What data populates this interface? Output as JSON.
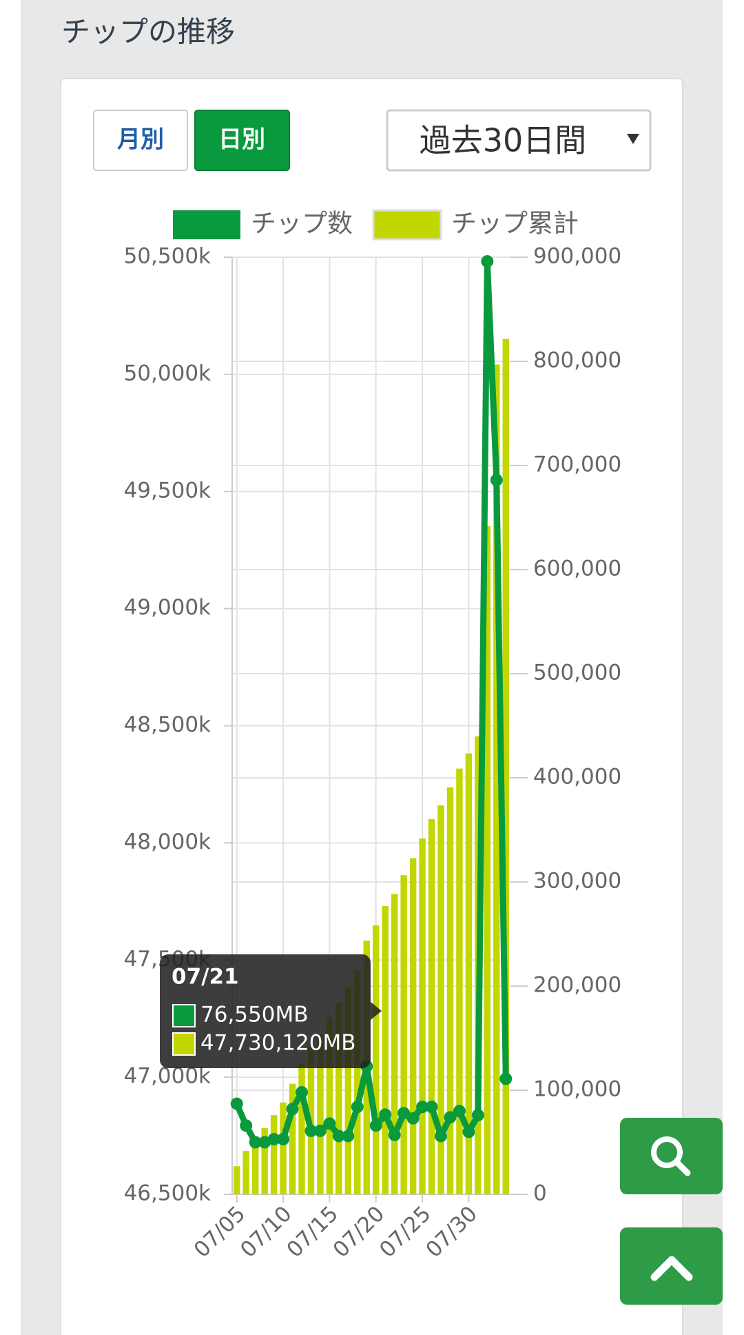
{
  "header": {
    "title": "チップの推移"
  },
  "controls": {
    "monthly": "月別",
    "daily": "日別",
    "period": "過去30日間"
  },
  "chart_data": {
    "type": "bar",
    "categories": [
      "07/05",
      null,
      null,
      null,
      null,
      "07/10",
      null,
      null,
      null,
      null,
      "07/15",
      null,
      null,
      null,
      null,
      "07/20",
      null,
      null,
      null,
      null,
      "07/25",
      null,
      null,
      null,
      null,
      "07/30",
      null,
      null,
      null,
      null
    ],
    "series": [
      {
        "name": "チップ数",
        "type": "line",
        "axis": "y2",
        "color": "#0a9a3e",
        "values": [
          87000,
          66000,
          50000,
          50000,
          53000,
          53000,
          82000,
          98000,
          61000,
          61000,
          68000,
          56000,
          56000,
          84000,
          123000,
          66000,
          76550,
          57000,
          78000,
          73000,
          84000,
          84000,
          56000,
          74000,
          80000,
          60000,
          76000,
          896000,
          686000,
          111000
        ]
      },
      {
        "name": "チップ累計",
        "type": "bar",
        "color": "#c2d600",
        "values": [
          46620,
          46685,
          46736,
          46783,
          46838,
          46892,
          46972,
          47056,
          47128,
          47183,
          47256,
          47317,
          47383,
          47455,
          47583,
          47648,
          47730.12,
          47782,
          47862,
          47935,
          48019,
          48102,
          48160,
          48237,
          48317,
          48382,
          48455,
          49352,
          50042,
          50151
        ]
      }
    ],
    "ylim": [
      46500,
      50500
    ],
    "yticks": [
      {
        "value": 46500,
        "label": "46,500k"
      },
      {
        "value": 47000,
        "label": "47,000k"
      },
      {
        "value": 47500,
        "label": "47,500k"
      },
      {
        "value": 48000,
        "label": "48,000k"
      },
      {
        "value": 48500,
        "label": "48,500k"
      },
      {
        "value": 49000,
        "label": "49,000k"
      },
      {
        "value": 49500,
        "label": "49,500k"
      },
      {
        "value": 50000,
        "label": "50,000k"
      },
      {
        "value": 50500,
        "label": "50,500k"
      }
    ],
    "y2lim": [
      0,
      900000
    ],
    "y2ticks": [
      0,
      {
        "value": 100000,
        "label": "100,000"
      },
      {
        "value": 200000,
        "label": "200,000"
      },
      {
        "value": 300000,
        "label": "300,000"
      },
      {
        "value": 400000,
        "label": "400,000"
      },
      {
        "value": 500000,
        "label": "500,000"
      },
      {
        "value": 600000,
        "label": "600,000"
      },
      {
        "value": 700000,
        "label": "700,000"
      },
      {
        "value": 800000,
        "label": "800,000"
      },
      {
        "value": 900000,
        "label": "900,000"
      }
    ],
    "grid": true,
    "legend": "top"
  },
  "tooltip": {
    "date": "07/21",
    "line_value": "76,550MB",
    "bar_value": "47,730,120MB"
  }
}
